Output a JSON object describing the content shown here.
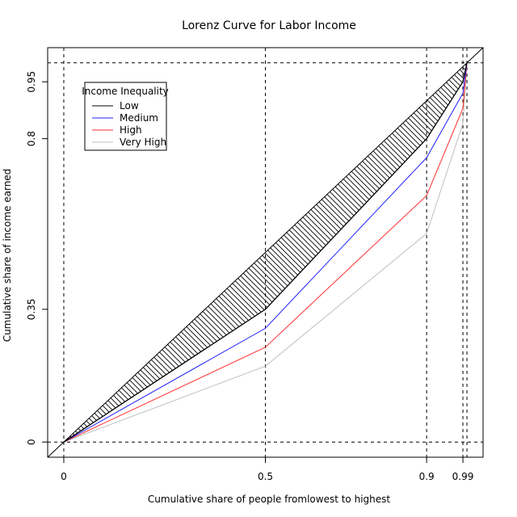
{
  "chart_data": {
    "type": "line",
    "title": "Lorenz Curve for Labor Income",
    "xlabel": "Cumulative share of people fromlowest to highest",
    "ylabel": "Cumulative share of income earned",
    "xlim": [
      -0.04,
      1.04
    ],
    "ylim": [
      -0.04,
      1.04
    ],
    "x_ticks": [
      {
        "value": 0,
        "label": "0"
      },
      {
        "value": 0.5,
        "label": "0.5"
      },
      {
        "value": 0.9,
        "label": "0.9"
      },
      {
        "value": 0.99,
        "label": "0.99"
      }
    ],
    "y_ticks": [
      {
        "value": 0,
        "label": "0"
      },
      {
        "value": 0.35,
        "label": "0.35"
      },
      {
        "value": 0.8,
        "label": "0.8"
      },
      {
        "value": 0.95,
        "label": "0.95"
      }
    ],
    "x_reference_lines": [
      0,
      0.5,
      0.9,
      0.99,
      1
    ],
    "y_reference_lines": [
      0,
      1
    ],
    "equality_line": true,
    "shaded_region": "between equality line and Low curve (hatched)",
    "legend": {
      "title": "Income Inequality",
      "position": "top-left"
    },
    "x": [
      0,
      0.5,
      0.9,
      0.99,
      1
    ],
    "series": [
      {
        "name": "Low",
        "color": "#000000",
        "values": [
          0,
          0.35,
          0.8,
          0.95,
          1
        ]
      },
      {
        "name": "Medium",
        "color": "#2020ff",
        "values": [
          0,
          0.3,
          0.75,
          0.92,
          1
        ]
      },
      {
        "name": "High",
        "color": "#ff3030",
        "values": [
          0,
          0.25,
          0.65,
          0.88,
          1
        ]
      },
      {
        "name": "Very High",
        "color": "#bebebe",
        "values": [
          0,
          0.2,
          0.55,
          0.84,
          1
        ]
      }
    ]
  }
}
